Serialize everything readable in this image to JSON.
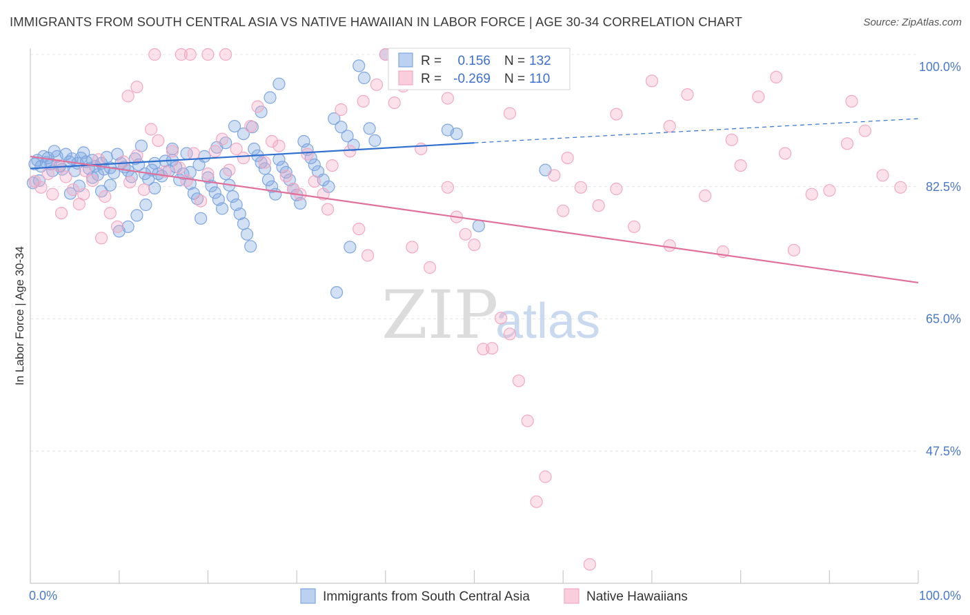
{
  "title": "IMMIGRANTS FROM SOUTH CENTRAL ASIA VS NATIVE HAWAIIAN IN LABOR FORCE | AGE 30-34 CORRELATION CHART",
  "source": "Source: ZipAtlas.com",
  "watermark": {
    "zip": "ZIP",
    "atlas": "atlas"
  },
  "chart_data": {
    "type": "scatter",
    "xlabel": "",
    "ylabel": "In Labor Force | Age 30-34",
    "xlim": [
      0,
      100
    ],
    "ylim": [
      30,
      100
    ],
    "x_tick_labels": {
      "left": "0.0%",
      "right": "100.0%"
    },
    "y_ticks": [
      {
        "value": 100,
        "label": "100.0%"
      },
      {
        "value": 82.5,
        "label": "82.5%"
      },
      {
        "value": 65,
        "label": "65.0%"
      },
      {
        "value": 47.5,
        "label": "47.5%"
      }
    ],
    "grid": true,
    "legend_position": "top-center",
    "series": [
      {
        "name": "Immigrants from South Central Asia",
        "color": "#7ea6e0",
        "line_color": "#2f6fcf",
        "stats": {
          "r_label": "R =",
          "r_value": "0.156",
          "n_label": "N =",
          "n_value": "132"
        },
        "trend": {
          "x0": 0,
          "y0": 84.9,
          "x1": 50,
          "y1": 88.3,
          "dash_x1": 100,
          "dash_y1": 91.5
        },
        "points": [
          [
            0.3,
            83
          ],
          [
            0.5,
            85.5
          ],
          [
            0.8,
            86
          ],
          [
            1.2,
            85.2
          ],
          [
            1.5,
            86.5
          ],
          [
            1.8,
            85.7
          ],
          [
            2,
            86.3
          ],
          [
            2.3,
            85.5
          ],
          [
            2.7,
            87.2
          ],
          [
            3,
            86.5
          ],
          [
            3.3,
            85.2
          ],
          [
            3.6,
            84.8
          ],
          [
            4,
            86.8
          ],
          [
            4.4,
            85.8
          ],
          [
            4.7,
            86.2
          ],
          [
            5,
            84.6
          ],
          [
            5.3,
            85.6
          ],
          [
            5.7,
            86.3
          ],
          [
            6,
            87
          ],
          [
            6.3,
            85.8
          ],
          [
            6.6,
            84.9
          ],
          [
            7,
            86
          ],
          [
            7.3,
            85.2
          ],
          [
            7.6,
            84.1
          ],
          [
            8,
            85.6
          ],
          [
            8.3,
            84.8
          ],
          [
            8.6,
            86.4
          ],
          [
            9,
            85
          ],
          [
            9.4,
            84.3
          ],
          [
            9.8,
            86.8
          ],
          [
            10.2,
            85.6
          ],
          [
            10.6,
            85.1
          ],
          [
            11,
            84.6
          ],
          [
            11.4,
            83.8
          ],
          [
            11.8,
            86.2
          ],
          [
            12.2,
            85.4
          ],
          [
            12.5,
            87.9
          ],
          [
            12.9,
            84.2
          ],
          [
            13.3,
            83.5
          ],
          [
            13.7,
            84.7
          ],
          [
            14,
            85.6
          ],
          [
            14.4,
            84.2
          ],
          [
            14.8,
            83.9
          ],
          [
            15.2,
            85.9
          ],
          [
            15.6,
            84.6
          ],
          [
            16,
            87.5
          ],
          [
            16.4,
            85.1
          ],
          [
            16.8,
            83.4
          ],
          [
            17.2,
            84.2
          ],
          [
            17.6,
            86.9
          ],
          [
            18,
            82.9
          ],
          [
            18.4,
            81.6
          ],
          [
            18.8,
            80.9
          ],
          [
            19.2,
            78.3
          ],
          [
            19.6,
            86.5
          ],
          [
            20,
            83.7
          ],
          [
            20.4,
            82.6
          ],
          [
            20.8,
            81.7
          ],
          [
            21.2,
            80.8
          ],
          [
            21.6,
            79.6
          ],
          [
            22,
            84.2
          ],
          [
            22.4,
            82.7
          ],
          [
            22.8,
            81.2
          ],
          [
            23.2,
            80.1
          ],
          [
            23.6,
            78.9
          ],
          [
            24,
            77.6
          ],
          [
            24.4,
            76.2
          ],
          [
            24.8,
            74.6
          ],
          [
            25.2,
            87.5
          ],
          [
            25.6,
            86.6
          ],
          [
            26,
            85.7
          ],
          [
            26.4,
            84.9
          ],
          [
            26.8,
            83.4
          ],
          [
            27.2,
            82.5
          ],
          [
            27.6,
            81.5
          ],
          [
            28,
            86.1
          ],
          [
            28.4,
            85.1
          ],
          [
            28.8,
            84.4
          ],
          [
            29.2,
            83.4
          ],
          [
            29.6,
            82.2
          ],
          [
            30,
            81.4
          ],
          [
            30.4,
            80.3
          ],
          [
            30.8,
            88.5
          ],
          [
            31.2,
            87.4
          ],
          [
            31.6,
            86.3
          ],
          [
            32,
            85.4
          ],
          [
            32.4,
            84.5
          ],
          [
            33,
            83.4
          ],
          [
            33.6,
            82.5
          ],
          [
            34.2,
            91.5
          ],
          [
            35,
            90.4
          ],
          [
            35.7,
            89.2
          ],
          [
            36.4,
            88
          ],
          [
            37,
            98.5
          ],
          [
            37.6,
            96.9
          ],
          [
            38.2,
            90.2
          ],
          [
            38.8,
            88.6
          ],
          [
            40,
            100
          ],
          [
            41,
            96.8
          ],
          [
            42,
            100
          ],
          [
            43,
            100
          ],
          [
            44,
            100
          ],
          [
            45,
            100
          ],
          [
            46,
            100
          ],
          [
            47,
            90
          ],
          [
            48,
            89.5
          ],
          [
            25,
            90.4
          ],
          [
            26,
            92.4
          ],
          [
            27,
            94.3
          ],
          [
            28,
            96.1
          ],
          [
            24,
            89.5
          ],
          [
            23,
            90.5
          ],
          [
            22,
            88.3
          ],
          [
            21,
            87.7
          ],
          [
            19,
            85.4
          ],
          [
            18,
            84.4
          ],
          [
            16,
            86
          ],
          [
            14,
            82.3
          ],
          [
            13,
            80.1
          ],
          [
            12,
            78.7
          ],
          [
            11,
            77.2
          ],
          [
            10,
            76.6
          ],
          [
            9,
            82.7
          ],
          [
            8,
            81.9
          ],
          [
            7,
            83.7
          ],
          [
            5.5,
            82.6
          ],
          [
            4.5,
            81.6
          ],
          [
            1,
            83.3
          ],
          [
            2.5,
            84.6
          ],
          [
            34.5,
            68.5
          ],
          [
            36,
            74.5
          ],
          [
            50.5,
            77.3
          ],
          [
            58,
            84.7
          ],
          [
            60,
            100
          ]
        ]
      },
      {
        "name": "Native Hawaiians",
        "color": "#f3a8c2",
        "line_color": "#e0709a",
        "stats": {
          "r_label": "R =",
          "r_value": "-0.269",
          "n_label": "N =",
          "n_value": "110"
        },
        "trend": {
          "x0": 0,
          "y0": 86.5,
          "x1": 100,
          "y1": 69.8
        },
        "points": [
          [
            0.5,
            83.2
          ],
          [
            1.2,
            82.4
          ],
          [
            2,
            84.2
          ],
          [
            2.5,
            81.5
          ],
          [
            3.2,
            85.3
          ],
          [
            4,
            83.8
          ],
          [
            4.8,
            82.1
          ],
          [
            5.5,
            80.2
          ],
          [
            6.2,
            84.6
          ],
          [
            7,
            83.3
          ],
          [
            7.7,
            86.1
          ],
          [
            8.4,
            81.2
          ],
          [
            9,
            79
          ],
          [
            9.8,
            77.2
          ],
          [
            10.5,
            85.8
          ],
          [
            11.2,
            83.1
          ],
          [
            12,
            86.6
          ],
          [
            12.8,
            82.1
          ],
          [
            13.6,
            90.1
          ],
          [
            14.4,
            88.6
          ],
          [
            15.2,
            84.5
          ],
          [
            16,
            87.2
          ],
          [
            16.8,
            85
          ],
          [
            17.6,
            83.3
          ],
          [
            18.4,
            86.9
          ],
          [
            19.2,
            80.6
          ],
          [
            20,
            84.2
          ],
          [
            20.8,
            87.2
          ],
          [
            21.6,
            88.8
          ],
          [
            22.4,
            84.7
          ],
          [
            23.2,
            87.5
          ],
          [
            24,
            86.3
          ],
          [
            24.8,
            90.5
          ],
          [
            25.6,
            93.1
          ],
          [
            26.4,
            85.7
          ],
          [
            27.2,
            88.5
          ],
          [
            28,
            87.9
          ],
          [
            28.8,
            83.9
          ],
          [
            29.6,
            82.2
          ],
          [
            30.4,
            81.5
          ],
          [
            31.2,
            86.8
          ],
          [
            32,
            83.2
          ],
          [
            33,
            81.5
          ],
          [
            34,
            85.3
          ],
          [
            35,
            92.7
          ],
          [
            36,
            87.2
          ],
          [
            37,
            76.9
          ],
          [
            38,
            73.4
          ],
          [
            39,
            96
          ],
          [
            40,
            100
          ],
          [
            41,
            93.6
          ],
          [
            42,
            95.8
          ],
          [
            43,
            74.5
          ],
          [
            44,
            87.5
          ],
          [
            45,
            71.8
          ],
          [
            46,
            97.8
          ],
          [
            47,
            82.4
          ],
          [
            48,
            78.5
          ],
          [
            49,
            76.2
          ],
          [
            50,
            74.8
          ],
          [
            51,
            61
          ],
          [
            52,
            61.1
          ],
          [
            53,
            65.1
          ],
          [
            54,
            63
          ],
          [
            55,
            56.8
          ],
          [
            56,
            51.5
          ],
          [
            57,
            40.8
          ],
          [
            58,
            44.1
          ],
          [
            59,
            84
          ],
          [
            60,
            79.3
          ],
          [
            62,
            82.4
          ],
          [
            64,
            80
          ],
          [
            66,
            82.2
          ],
          [
            68,
            77.2
          ],
          [
            70,
            96.5
          ],
          [
            72,
            74.7
          ],
          [
            74,
            94.7
          ],
          [
            76,
            81.3
          ],
          [
            78,
            73.9
          ],
          [
            80,
            85.3
          ],
          [
            82,
            94.4
          ],
          [
            84,
            97
          ],
          [
            85,
            86.9
          ],
          [
            86,
            74.1
          ],
          [
            88,
            81.5
          ],
          [
            90,
            82
          ],
          [
            92,
            88.2
          ],
          [
            94,
            89.9
          ],
          [
            96,
            84
          ],
          [
            98,
            82.4
          ],
          [
            63,
            32.5
          ],
          [
            18,
            100
          ],
          [
            17,
            100
          ],
          [
            20,
            100
          ],
          [
            22,
            100
          ],
          [
            14,
            100
          ],
          [
            12,
            95.7
          ],
          [
            11,
            94.5
          ],
          [
            6,
            81.5
          ],
          [
            3.5,
            79
          ],
          [
            8,
            75.7
          ],
          [
            33.5,
            79.5
          ],
          [
            54,
            92.2
          ],
          [
            60.5,
            86.3
          ],
          [
            66,
            92.1
          ],
          [
            72,
            90.5
          ],
          [
            79,
            88.7
          ],
          [
            92.5,
            93.8
          ],
          [
            37.5,
            93.8
          ],
          [
            47,
            94.2
          ]
        ]
      }
    ]
  }
}
